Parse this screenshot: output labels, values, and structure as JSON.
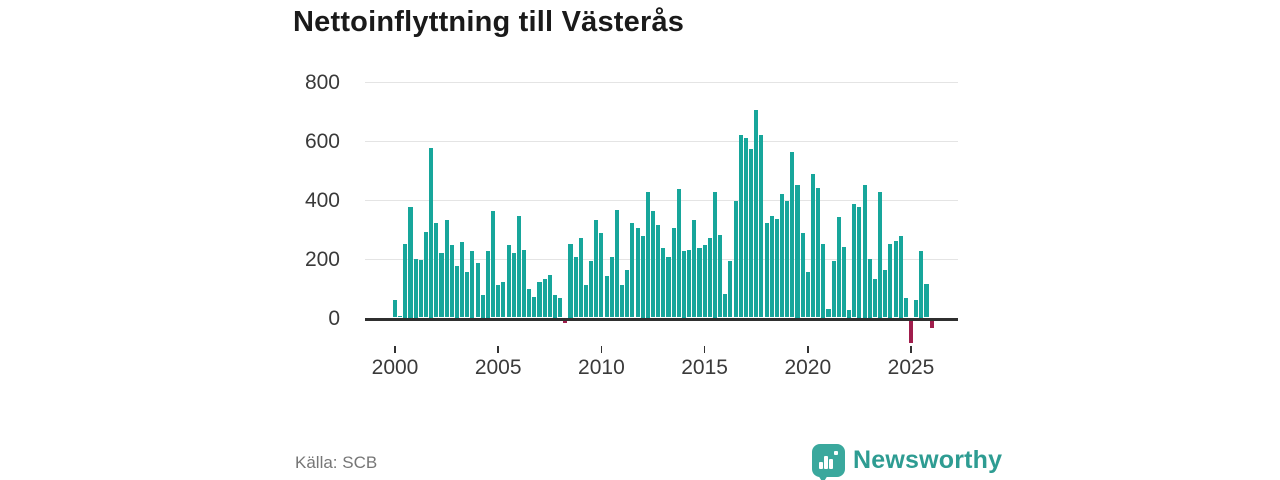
{
  "header": {
    "title": "Nettoinflyttning till Västerås"
  },
  "footer": {
    "source_label": "Källa: SCB",
    "brand_name": "Newsworthy"
  },
  "colors": {
    "bar_positive": "#17a69b",
    "bar_negative": "#a01d4c",
    "axis": "#2f2f2f",
    "grid": "#e4e4e4",
    "tick_text": "#3a3a3a",
    "muted_text": "#767676",
    "brand_teal": "#2e9c92",
    "logo_background": "#3aa89d"
  },
  "chart_data": {
    "type": "bar",
    "title": "Nettoinflyttning till Västerås",
    "source": "Källa: SCB",
    "frequency": "quarterly",
    "x_start_year": 2000,
    "bars_per_year": 4,
    "x_tick_labels": [
      "2000",
      "2005",
      "2010",
      "2015",
      "2020",
      "2025"
    ],
    "y_ticks": [
      0,
      200,
      400,
      600,
      800
    ],
    "ylim": [
      -100,
      800
    ],
    "grid": "horizontal",
    "legend": "none",
    "values": [
      60,
      5,
      250,
      375,
      200,
      195,
      290,
      575,
      320,
      220,
      330,
      245,
      175,
      255,
      155,
      225,
      185,
      75,
      225,
      360,
      110,
      120,
      245,
      220,
      345,
      230,
      95,
      70,
      120,
      130,
      145,
      75,
      65,
      -10,
      250,
      205,
      270,
      110,
      190,
      330,
      285,
      140,
      205,
      365,
      110,
      160,
      320,
      305,
      275,
      425,
      360,
      315,
      235,
      205,
      305,
      435,
      225,
      230,
      330,
      235,
      245,
      270,
      425,
      280,
      80,
      190,
      395,
      620,
      610,
      570,
      705,
      620,
      320,
      345,
      335,
      420,
      395,
      560,
      450,
      285,
      155,
      485,
      440,
      250,
      30,
      190,
      340,
      240,
      25,
      385,
      375,
      450,
      200,
      130,
      425,
      160,
      250,
      260,
      275,
      65,
      -75,
      60,
      225,
      115,
      -25
    ]
  }
}
